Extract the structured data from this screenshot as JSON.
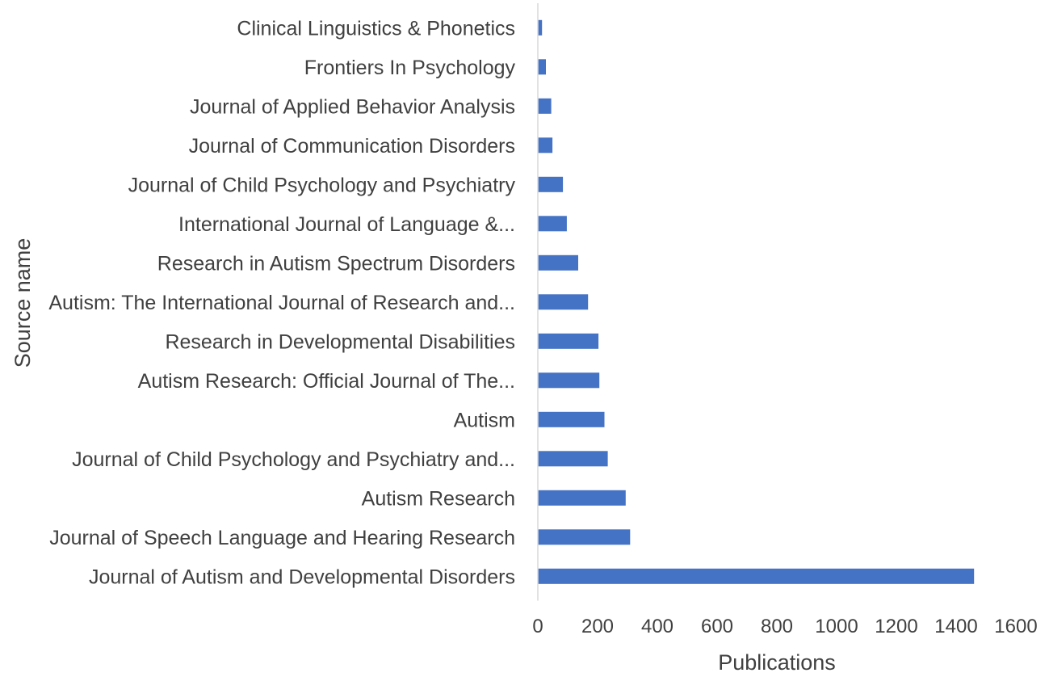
{
  "chart_data": {
    "type": "bar",
    "orientation": "horizontal",
    "categories": [
      "Clinical Linguistics & Phonetics",
      "Frontiers In Psychology",
      "Journal of Applied Behavior Analysis",
      "Journal of Communication Disorders",
      "Journal of Child Psychology and Psychiatry",
      "International Journal of Language &...",
      "Research in Autism Spectrum Disorders",
      "Autism: The International Journal of Research and...",
      "Research in Developmental Disabilities",
      "Autism Research: Official Journal of The...",
      "Autism",
      "Journal of Child Psychology and Psychiatry and...",
      "Autism Research",
      "Journal of Speech Language and Hearing Research",
      "Journal of Autism and Developmental Disorders"
    ],
    "values": [
      14,
      27,
      45,
      49,
      84,
      97,
      135,
      168,
      203,
      206,
      223,
      234,
      294,
      309,
      1460
    ],
    "xlabel": "Publications",
    "ylabel": "Source name",
    "xlim": [
      0,
      1600
    ],
    "xticks": [
      "0",
      "200",
      "400",
      "600",
      "800",
      "1000",
      "1200",
      "1400",
      "1600"
    ],
    "grid": false,
    "legend": "none",
    "bar_color": "#4472C4",
    "axis_color": "#D9D9D9"
  }
}
